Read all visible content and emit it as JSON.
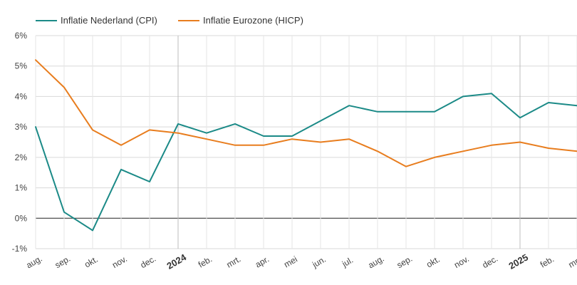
{
  "chart_data": {
    "type": "line",
    "categories": [
      "aug.",
      "sep.",
      "okt.",
      "nov.",
      "dec.",
      "2024",
      "feb.",
      "mrt.",
      "apr.",
      "mei",
      "jun.",
      "jul.",
      "aug.",
      "sep.",
      "okt.",
      "nov.",
      "dec.",
      "2025",
      "feb.",
      "mrt."
    ],
    "bold_categories": [
      "2024",
      "2025"
    ],
    "y_ticks": [
      "-1%",
      "0%",
      "1%",
      "2%",
      "3%",
      "4%",
      "5%",
      "6%"
    ],
    "ylim": [
      -1,
      6
    ],
    "grid": true,
    "legend_position": "top-left",
    "series": [
      {
        "name": "Inflatie Nederland (CPI)",
        "color": "#1b8a87",
        "values": [
          3.0,
          0.2,
          -0.4,
          1.6,
          1.2,
          3.1,
          2.8,
          3.1,
          2.7,
          2.7,
          3.2,
          3.7,
          3.5,
          3.5,
          3.5,
          4.0,
          4.1,
          3.3,
          3.8,
          3.7
        ]
      },
      {
        "name": "Inflatie Eurozone (HICP)",
        "color": "#e87d1e",
        "values": [
          5.2,
          4.3,
          2.9,
          2.4,
          2.9,
          2.8,
          2.6,
          2.4,
          2.4,
          2.6,
          2.5,
          2.6,
          2.2,
          1.7,
          2.0,
          2.2,
          2.4,
          2.5,
          2.3,
          2.2
        ]
      }
    ]
  }
}
